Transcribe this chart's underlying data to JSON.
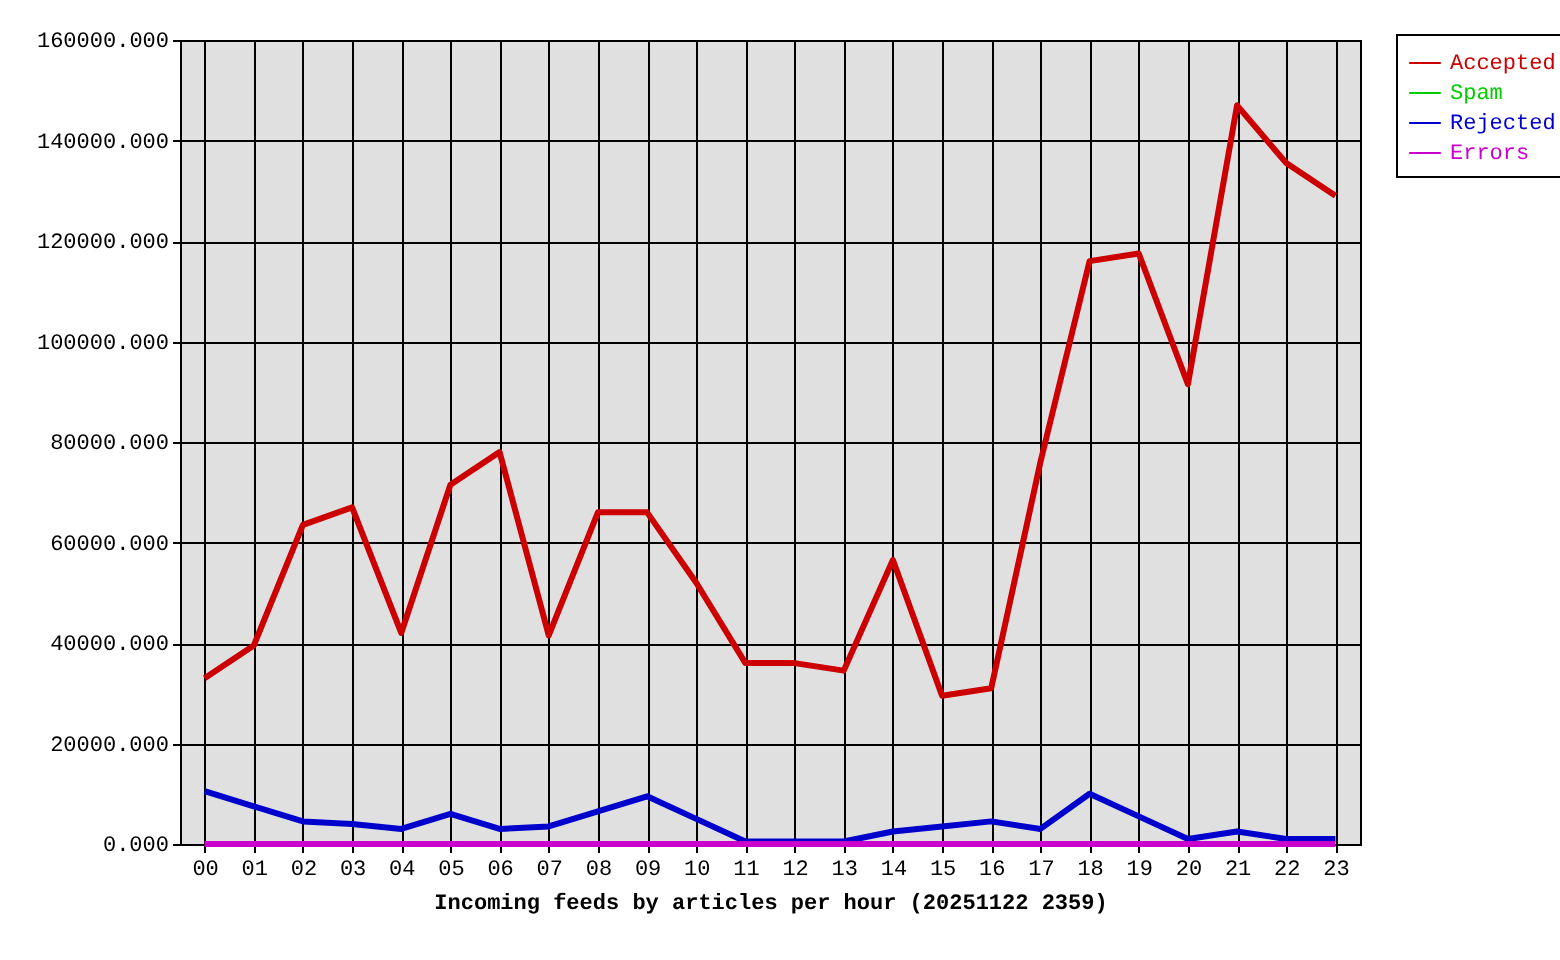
{
  "chart_data": {
    "type": "line",
    "xlabel": "Incoming feeds by articles per hour (20251122 2359)",
    "categories": [
      "00",
      "01",
      "02",
      "03",
      "04",
      "05",
      "06",
      "07",
      "08",
      "09",
      "10",
      "11",
      "12",
      "13",
      "14",
      "15",
      "16",
      "17",
      "18",
      "19",
      "20",
      "21",
      "22",
      "23"
    ],
    "series": [
      {
        "name": "Accepted",
        "color": "#cc0000",
        "values": [
          33000,
          39500,
          63500,
          67000,
          42000,
          71500,
          78000,
          41500,
          66000,
          66000,
          52000,
          36000,
          36000,
          34500,
          56500,
          29500,
          31000,
          76000,
          116000,
          117500,
          91500,
          147000,
          135500,
          129000
        ]
      },
      {
        "name": "Spam",
        "color": "#00cc00",
        "values": [
          null,
          null,
          null,
          null,
          null,
          null,
          null,
          null,
          null,
          null,
          null,
          null,
          null,
          null,
          null,
          null,
          null,
          null,
          null,
          null,
          null,
          null,
          null,
          null
        ]
      },
      {
        "name": "Rejected",
        "color": "#0000cc",
        "values": [
          10500,
          7500,
          4500,
          4000,
          3000,
          6000,
          3000,
          3500,
          6500,
          9500,
          5000,
          500,
          500,
          500,
          2500,
          3500,
          4500,
          3000,
          10000,
          5500,
          1000,
          2500,
          1000,
          1000
        ]
      },
      {
        "name": "Errors",
        "color": "#cc00cc",
        "values": [
          0,
          0,
          0,
          0,
          0,
          0,
          0,
          0,
          0,
          0,
          0,
          0,
          0,
          0,
          0,
          0,
          0,
          0,
          0,
          0,
          0,
          0,
          0,
          0
        ]
      }
    ],
    "ylim": [
      0,
      160000
    ],
    "yticks": [
      {
        "value": 0,
        "label": "0.000"
      },
      {
        "value": 20000,
        "label": "20000.000"
      },
      {
        "value": 40000,
        "label": "40000.000"
      },
      {
        "value": 60000,
        "label": "60000.000"
      },
      {
        "value": 80000,
        "label": "80000.000"
      },
      {
        "value": 100000,
        "label": "100000.000"
      },
      {
        "value": 120000,
        "label": "120000.000"
      },
      {
        "value": 140000,
        "label": "140000.000"
      },
      {
        "value": 160000,
        "label": "160000.000"
      }
    ],
    "grid": true,
    "legend": "top right",
    "marker": "none",
    "line_style": "solid"
  }
}
